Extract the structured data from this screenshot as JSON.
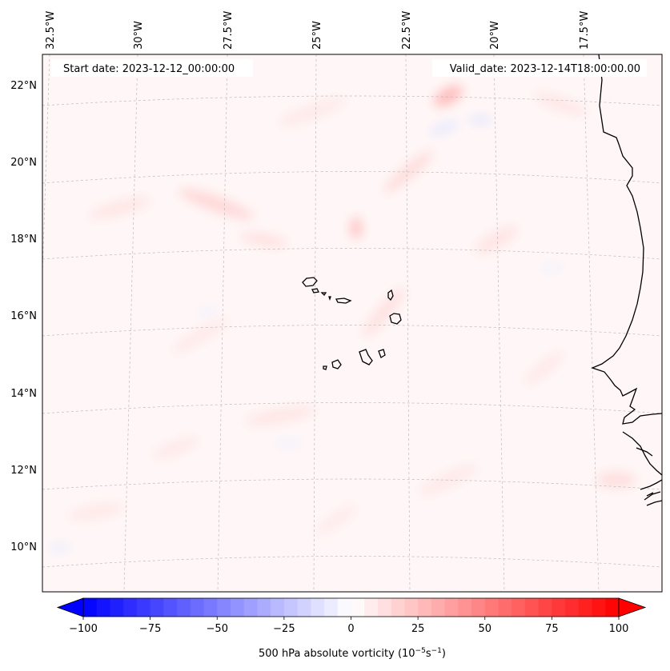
{
  "header": {
    "start_date": "Start date: 2023-12-12_00:00:00",
    "valid_date": "Valid_date: 2023-12-14T18:00:00.00"
  },
  "lon_labels": [
    "32.5°W",
    "30°W",
    "27.5°W",
    "25°W",
    "22.5°W",
    "20°W",
    "17.5°W"
  ],
  "lat_labels": [
    "22°N",
    "20°N",
    "18°N",
    "16°N",
    "14°N",
    "12°N",
    "10°N"
  ],
  "colorbar": {
    "label": "500 hPa absolute vorticity (10",
    "label_exp1": "−5",
    "label_mid": "s",
    "label_exp2": "−1",
    "label_close": ")",
    "min": -100,
    "max": 100,
    "ticks": [
      "−100",
      "−75",
      "−50",
      "−25",
      "0",
      "25",
      "50",
      "75",
      "100"
    ],
    "tick_values": [
      -100,
      -75,
      -50,
      -25,
      0,
      25,
      50,
      75,
      100
    ],
    "levels": 40,
    "low_color": "#0000ff",
    "mid_color": "#ffffff",
    "high_color": "#ff0000"
  },
  "map": {
    "background": "#fff7f7",
    "gridline_color": "#bbbbbb"
  }
}
